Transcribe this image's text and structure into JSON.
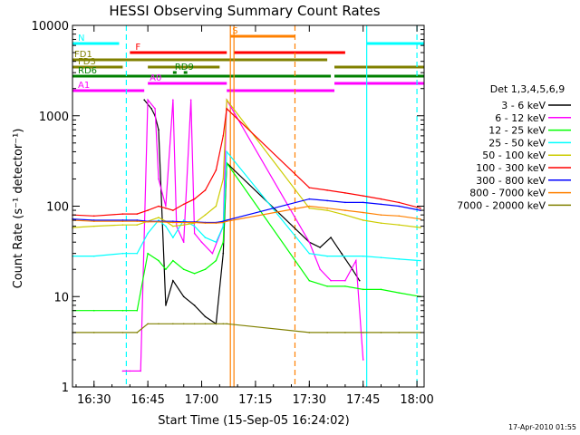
{
  "chart_data": {
    "type": "line",
    "title": "HESSI Observing Summary Count Rates",
    "xlabel": "Start Time (15-Sep-05 16:24:02)",
    "ylabel": "Count Rate (s⁻¹ detector⁻¹)",
    "y_scale": "log",
    "ylim": [
      1,
      10000
    ],
    "xlim": [
      "16:24",
      "18:02"
    ],
    "x_ticks": [
      "16:30",
      "16:45",
      "17:00",
      "17:15",
      "17:30",
      "17:45",
      "18:00"
    ],
    "y_ticks": [
      "1",
      "10",
      "100",
      "1000",
      "10000"
    ],
    "legend_title": "Det 1,3,4,5,6,9",
    "legend_position": "right",
    "footer": "17-Apr-2010 01:55",
    "series": [
      {
        "name": "3 - 6 keV",
        "color": "#000000",
        "x": [
          "16:44",
          "16:46",
          "16:47",
          "16:48",
          "16:50",
          "16:52",
          "16:55",
          "16:58",
          "17:01",
          "17:04",
          "17:06",
          "17:07",
          "17:30",
          "17:33",
          "17:36",
          "17:39",
          "17:42",
          "17:44"
        ],
        "values": [
          1500,
          1200,
          1000,
          700,
          8,
          15,
          10,
          8,
          6,
          5,
          30,
          300,
          40,
          35,
          45,
          30,
          20,
          15
        ]
      },
      {
        "name": "6 - 12 keV",
        "color": "#ff00ff",
        "x": [
          "16:38",
          "16:40",
          "16:43",
          "16:45",
          "16:47",
          "16:48",
          "16:50",
          "16:52",
          "16:53",
          "16:55",
          "16:57",
          "16:58",
          "17:00",
          "17:03",
          "17:06",
          "17:07",
          "17:30",
          "17:33",
          "17:36",
          "17:40",
          "17:43",
          "17:45"
        ],
        "values": [
          1.5,
          1.5,
          1.5,
          1500,
          1200,
          200,
          100,
          1500,
          60,
          40,
          1500,
          50,
          40,
          30,
          60,
          1500,
          40,
          20,
          15,
          15,
          25,
          2
        ]
      },
      {
        "name": "12 - 25 keV",
        "color": "#00ff00",
        "x": [
          "16:24",
          "16:30",
          "16:38",
          "16:42",
          "16:45",
          "16:48",
          "16:50",
          "16:52",
          "16:55",
          "16:58",
          "17:01",
          "17:04",
          "17:06",
          "17:07",
          "17:30",
          "17:35",
          "17:40",
          "17:45",
          "17:50",
          "17:55",
          "18:01"
        ],
        "values": [
          7,
          7,
          7,
          7,
          30,
          25,
          20,
          25,
          20,
          18,
          20,
          25,
          40,
          300,
          15,
          13,
          13,
          12,
          12,
          11,
          10
        ]
      },
      {
        "name": "25 - 50 keV",
        "color": "#00ffff",
        "x": [
          "16:24",
          "16:30",
          "16:38",
          "16:42",
          "16:45",
          "16:48",
          "16:50",
          "16:52",
          "16:55",
          "16:58",
          "17:01",
          "17:04",
          "17:06",
          "17:07",
          "17:30",
          "17:35",
          "17:40",
          "17:45",
          "17:50",
          "17:55",
          "18:01"
        ],
        "values": [
          28,
          28,
          30,
          30,
          50,
          70,
          60,
          45,
          70,
          60,
          45,
          40,
          60,
          400,
          30,
          28,
          28,
          28,
          27,
          26,
          25
        ]
      },
      {
        "name": "50 - 100 keV",
        "color": "#cccc00",
        "x": [
          "16:24",
          "16:30",
          "16:38",
          "16:42",
          "16:45",
          "16:48",
          "16:50",
          "16:52",
          "16:55",
          "16:58",
          "17:01",
          "17:04",
          "17:06",
          "17:07",
          "17:30",
          "17:35",
          "17:40",
          "17:45",
          "17:50",
          "17:55",
          "18:01"
        ],
        "values": [
          58,
          60,
          62,
          62,
          68,
          75,
          68,
          60,
          62,
          65,
          80,
          100,
          200,
          1500,
          95,
          90,
          80,
          70,
          65,
          62,
          58
        ]
      },
      {
        "name": "100 - 300 keV",
        "color": "#ff0000",
        "x": [
          "16:24",
          "16:30",
          "16:38",
          "16:42",
          "16:45",
          "16:48",
          "16:50",
          "16:52",
          "16:55",
          "16:58",
          "17:01",
          "17:04",
          "17:06",
          "17:07",
          "17:30",
          "17:35",
          "17:40",
          "17:45",
          "17:50",
          "17:55",
          "18:01"
        ],
        "values": [
          80,
          78,
          82,
          82,
          90,
          100,
          95,
          90,
          105,
          120,
          150,
          250,
          600,
          1200,
          160,
          150,
          140,
          130,
          120,
          110,
          95
        ]
      },
      {
        "name": "300 - 800 keV",
        "color": "#0000ff",
        "x": [
          "16:24",
          "16:30",
          "16:38",
          "16:42",
          "16:45",
          "16:48",
          "16:52",
          "16:55",
          "16:58",
          "17:01",
          "17:04",
          "17:06",
          "17:07",
          "17:30",
          "17:35",
          "17:40",
          "17:45",
          "17:50",
          "17:55",
          "18:01"
        ],
        "values": [
          72,
          70,
          70,
          70,
          68,
          68,
          68,
          67,
          67,
          66,
          66,
          68,
          70,
          120,
          115,
          110,
          110,
          105,
          100,
          90
        ]
      },
      {
        "name": "800 - 7000 keV",
        "color": "#ff8000",
        "x": [
          "16:24",
          "16:30",
          "16:38",
          "16:42",
          "16:45",
          "16:48",
          "16:52",
          "16:55",
          "16:58",
          "17:01",
          "17:04",
          "17:06",
          "17:07",
          "17:30",
          "17:35",
          "17:40",
          "17:45",
          "17:50",
          "17:55",
          "18:01"
        ],
        "values": [
          70,
          68,
          68,
          68,
          67,
          67,
          66,
          66,
          66,
          65,
          65,
          66,
          68,
          100,
          95,
          90,
          85,
          80,
          78,
          72
        ]
      },
      {
        "name": "7000 - 20000 keV",
        "color": "#808000",
        "x": [
          "16:24",
          "16:30",
          "16:38",
          "16:42",
          "16:45",
          "16:48",
          "16:52",
          "16:55",
          "16:58",
          "17:01",
          "17:04",
          "17:06",
          "17:07",
          "17:30",
          "17:35",
          "17:40",
          "17:45",
          "17:50",
          "17:55",
          "18:01"
        ],
        "values": [
          4,
          4,
          4,
          4,
          5,
          5,
          5,
          5,
          5,
          5,
          5,
          5,
          5,
          4,
          4,
          4,
          4,
          4,
          4,
          4
        ]
      }
    ],
    "flag_segments": [
      {
        "label": "N",
        "color": "#00ffff",
        "spans": [
          [
            "16:24",
            "16:37"
          ],
          [
            "17:46",
            "18:02"
          ]
        ]
      },
      {
        "label": "S",
        "color": "#ff8000",
        "spans": [
          [
            "17:08",
            "17:26"
          ]
        ]
      },
      {
        "label": "F",
        "color": "#ff0000",
        "spans": [
          [
            "16:40",
            "17:07"
          ],
          [
            "17:09",
            "17:40"
          ]
        ]
      },
      {
        "label": "FD1",
        "color": "#808000",
        "spans": [
          [
            "16:24",
            "17:35"
          ]
        ]
      },
      {
        "label": "FD3",
        "color": "#808000",
        "spans": [
          [
            "16:24",
            "16:38"
          ],
          [
            "16:45",
            "17:05"
          ],
          [
            "17:37",
            "18:02"
          ]
        ]
      },
      {
        "label": "RD9",
        "color": "#008000",
        "spans": [
          [
            "16:52",
            "16:53"
          ],
          [
            "16:55",
            "16:56"
          ]
        ]
      },
      {
        "label": "RD6",
        "color": "#008000",
        "spans": [
          [
            "16:24",
            "17:36"
          ],
          [
            "17:37",
            "18:02"
          ]
        ]
      },
      {
        "label": "A0",
        "color": "#ff00ff",
        "spans": [
          [
            "16:45",
            "17:07"
          ],
          [
            "17:37",
            "18:02"
          ]
        ]
      },
      {
        "label": "A1",
        "color": "#ff00ff",
        "spans": [
          [
            "16:24",
            "16:44"
          ],
          [
            "17:07",
            "17:37"
          ]
        ]
      }
    ],
    "vertical_markers": [
      {
        "time": "16:39",
        "color": "#00ffff",
        "style": "dashed"
      },
      {
        "time": "17:08",
        "color": "#ff8000",
        "style": "solid"
      },
      {
        "time": "17:09",
        "color": "#ff8000",
        "style": "solid"
      },
      {
        "time": "17:26",
        "color": "#ff8000",
        "style": "dashed"
      },
      {
        "time": "17:46",
        "color": "#00ffff",
        "style": "solid"
      },
      {
        "time": "18:00",
        "color": "#00ffff",
        "style": "dashed"
      }
    ]
  }
}
